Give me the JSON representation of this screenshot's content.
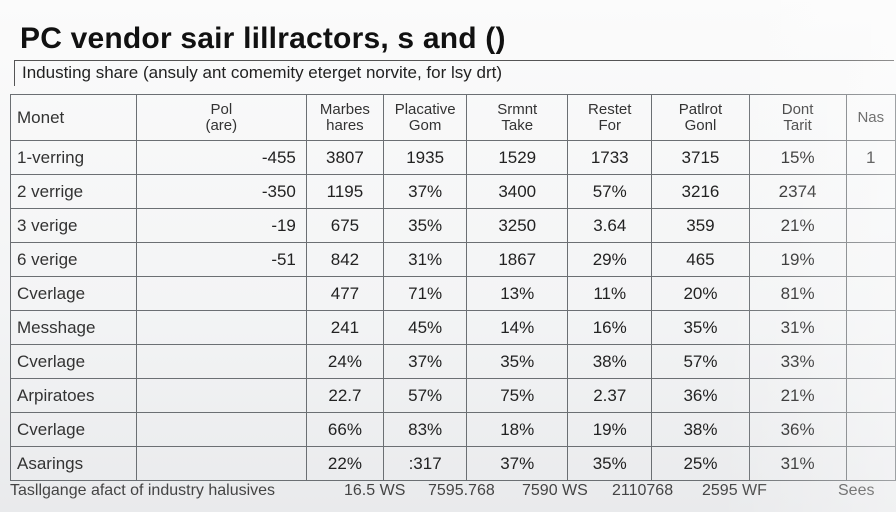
{
  "title": "PC vendor sair lillractors, s and ()",
  "subtitle": "Industing share (ansuly ant comemity eterget norvite, for lsy drt)",
  "table": {
    "headers": [
      [
        "Monet"
      ],
      [
        "Pol",
        "(are)"
      ],
      [
        "Marbes",
        "hares"
      ],
      [
        "Placative",
        "Gom"
      ],
      [
        "Srmnt",
        "Take"
      ],
      [
        "Restet",
        "For"
      ],
      [
        "Patlrot",
        "Gonl"
      ],
      [
        "Dont",
        "Tarit"
      ],
      [
        "Nas"
      ]
    ],
    "rows": [
      [
        "1-verring",
        "-455",
        "3807",
        "1935",
        "1529",
        "1733",
        "3715",
        "15%",
        "1"
      ],
      [
        "2 verrige",
        "-350",
        "1195",
        "37%",
        "3400",
        "57%",
        "3216",
        "2374",
        ""
      ],
      [
        "3 verige",
        "-19",
        "675",
        "35%",
        "3250",
        "3.64",
        "359",
        "21%",
        ""
      ],
      [
        "6 verige",
        "-51",
        "842",
        "31%",
        "1867",
        "29%",
        "465",
        "19%",
        ""
      ],
      [
        "Cverlage",
        "",
        "477",
        "71%",
        "13%",
        "11%",
        "20%",
        "81%",
        ""
      ],
      [
        "Messhage",
        "",
        "241",
        "45%",
        "14%",
        "16%",
        "35%",
        "31%",
        ""
      ],
      [
        "Cverlage",
        "",
        "24%",
        "37%",
        "35%",
        "38%",
        "57%",
        "33%",
        ""
      ],
      [
        "Arpiratoes",
        "",
        "22.7",
        "57%",
        "75%",
        "2.37",
        "36%",
        "21%",
        ""
      ],
      [
        "Cverlage",
        "",
        "66%",
        "83%",
        "18%",
        "19%",
        "38%",
        "36%",
        ""
      ],
      [
        "Asarings",
        "",
        "22%",
        ":317",
        "37%",
        "35%",
        "25%",
        "31%",
        ""
      ]
    ]
  },
  "footer": {
    "note": "Tasllgange afact of industry halusives",
    "values": [
      "16.5 WS",
      "7595.768",
      "7590 WS",
      "2110768",
      "2595 WF"
    ],
    "right": "Sees"
  }
}
